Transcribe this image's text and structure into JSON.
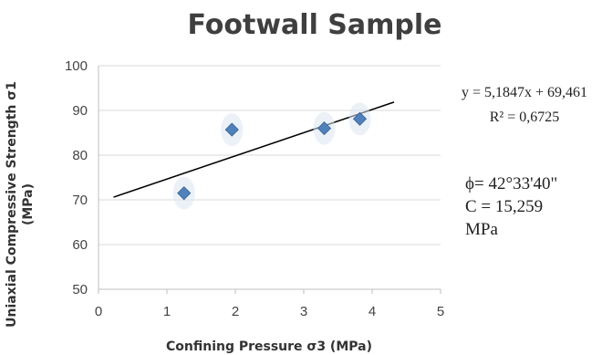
{
  "chart_data": {
    "type": "scatter",
    "title": "Footwall Sample",
    "xlabel": "Confining Pressure σ3 (MPa)",
    "ylabel_line1": "Uniaxial Compressive Strength σ1",
    "ylabel_line2": "(MPa)",
    "xlim": [
      0,
      5
    ],
    "ylim": [
      50,
      100
    ],
    "xticks": [
      "0",
      "1",
      "2",
      "3",
      "4",
      "5"
    ],
    "yticks": [
      "50",
      "60",
      "70",
      "80",
      "90",
      "100"
    ],
    "grid": "horizontal",
    "series": [
      {
        "marker": "diamond",
        "color": "#4f81bd",
        "points": [
          {
            "x": 1.25,
            "y": 71.5
          },
          {
            "x": 1.95,
            "y": 85.7
          },
          {
            "x": 3.3,
            "y": 86.0
          },
          {
            "x": 3.82,
            "y": 88.1
          }
        ]
      }
    ],
    "trendline": {
      "slope": 5.1847,
      "intercept": 69.461,
      "x_start": 0.22,
      "x_end": 4.32,
      "equation": "y = 5,1847x + 69,461",
      "r_squared": "R² = 0,6725"
    },
    "annotation": {
      "lines": [
        "ϕ= 42°33'40\"",
        "C = 15,259",
        "MPa"
      ]
    }
  },
  "colors": {
    "grid": "#d9d9d9",
    "axis": "#bfbfbf",
    "marker": "#4f81bd",
    "marker_halo": "#dce6f2",
    "trendline": "#000000"
  }
}
